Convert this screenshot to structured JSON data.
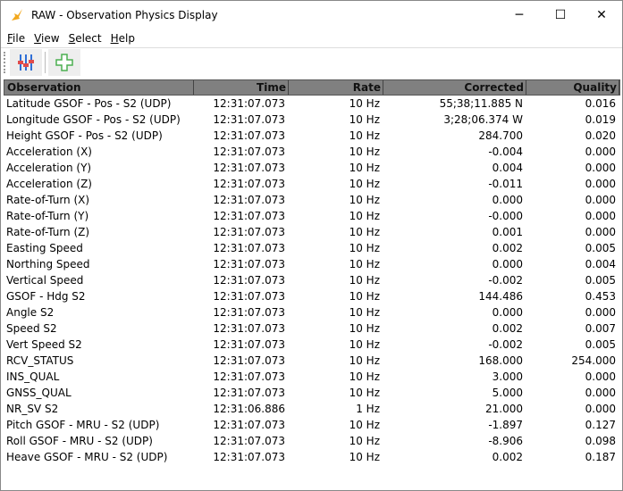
{
  "window": {
    "title": "RAW - Observation Physics Display",
    "minimize": "─",
    "maximize": "☐",
    "close": "✕"
  },
  "menu": [
    {
      "label": "File",
      "accel": "F",
      "rest": "ile"
    },
    {
      "label": "View",
      "accel": "V",
      "rest": "iew"
    },
    {
      "label": "Select",
      "accel": "S",
      "rest": "elect"
    },
    {
      "label": "Help",
      "accel": "H",
      "rest": "elp"
    }
  ],
  "toolbar": {
    "icons": [
      "sliders-icon",
      "add-icon"
    ],
    "colors": {
      "slider": "#2f6fd6",
      "knob": "#e04b4b",
      "add": "#4caf50"
    }
  },
  "table": {
    "columns": [
      "Observation",
      "Time",
      "Rate",
      "Corrected",
      "Quality"
    ],
    "rows": [
      [
        "Latitude GSOF - Pos - S2 (UDP)",
        "12:31:07.073",
        "10 Hz",
        "55;38;11.885 N",
        "0.016"
      ],
      [
        "Longitude GSOF - Pos - S2 (UDP)",
        "12:31:07.073",
        "10 Hz",
        "3;28;06.374 W",
        "0.019"
      ],
      [
        "Height GSOF - Pos - S2 (UDP)",
        "12:31:07.073",
        "10 Hz",
        "284.700",
        "0.020"
      ],
      [
        "Acceleration (X)",
        "12:31:07.073",
        "10 Hz",
        "-0.004",
        "0.000"
      ],
      [
        "Acceleration (Y)",
        "12:31:07.073",
        "10 Hz",
        "0.004",
        "0.000"
      ],
      [
        "Acceleration (Z)",
        "12:31:07.073",
        "10 Hz",
        "-0.011",
        "0.000"
      ],
      [
        "Rate-of-Turn (X)",
        "12:31:07.073",
        "10 Hz",
        "0.000",
        "0.000"
      ],
      [
        "Rate-of-Turn (Y)",
        "12:31:07.073",
        "10 Hz",
        "-0.000",
        "0.000"
      ],
      [
        "Rate-of-Turn (Z)",
        "12:31:07.073",
        "10 Hz",
        "0.001",
        "0.000"
      ],
      [
        "Easting Speed",
        "12:31:07.073",
        "10 Hz",
        "0.002",
        "0.005"
      ],
      [
        "Northing Speed",
        "12:31:07.073",
        "10 Hz",
        "0.000",
        "0.004"
      ],
      [
        "Vertical Speed",
        "12:31:07.073",
        "10 Hz",
        "-0.002",
        "0.005"
      ],
      [
        "GSOF - Hdg S2",
        "12:31:07.073",
        "10 Hz",
        "144.486",
        "0.453"
      ],
      [
        "Angle S2",
        "12:31:07.073",
        "10 Hz",
        "0.000",
        "0.000"
      ],
      [
        "Speed S2",
        "12:31:07.073",
        "10 Hz",
        "0.002",
        "0.007"
      ],
      [
        "Vert Speed S2",
        "12:31:07.073",
        "10 Hz",
        "-0.002",
        "0.005"
      ],
      [
        "RCV_STATUS",
        "12:31:07.073",
        "10 Hz",
        "168.000",
        "254.000"
      ],
      [
        "INS_QUAL",
        "12:31:07.073",
        "10 Hz",
        "3.000",
        "0.000"
      ],
      [
        "GNSS_QUAL",
        "12:31:07.073",
        "10 Hz",
        "5.000",
        "0.000"
      ],
      [
        "NR_SV S2",
        "12:31:06.886",
        "1 Hz",
        "21.000",
        "0.000"
      ],
      [
        "Pitch GSOF - MRU - S2 (UDP)",
        "12:31:07.073",
        "10 Hz",
        "-1.897",
        "0.127"
      ],
      [
        "Roll GSOF - MRU - S2 (UDP)",
        "12:31:07.073",
        "10 Hz",
        "-8.906",
        "0.098"
      ],
      [
        "Heave GSOF - MRU - S2 (UDP)",
        "12:31:07.073",
        "10 Hz",
        "0.002",
        "0.187"
      ]
    ]
  }
}
